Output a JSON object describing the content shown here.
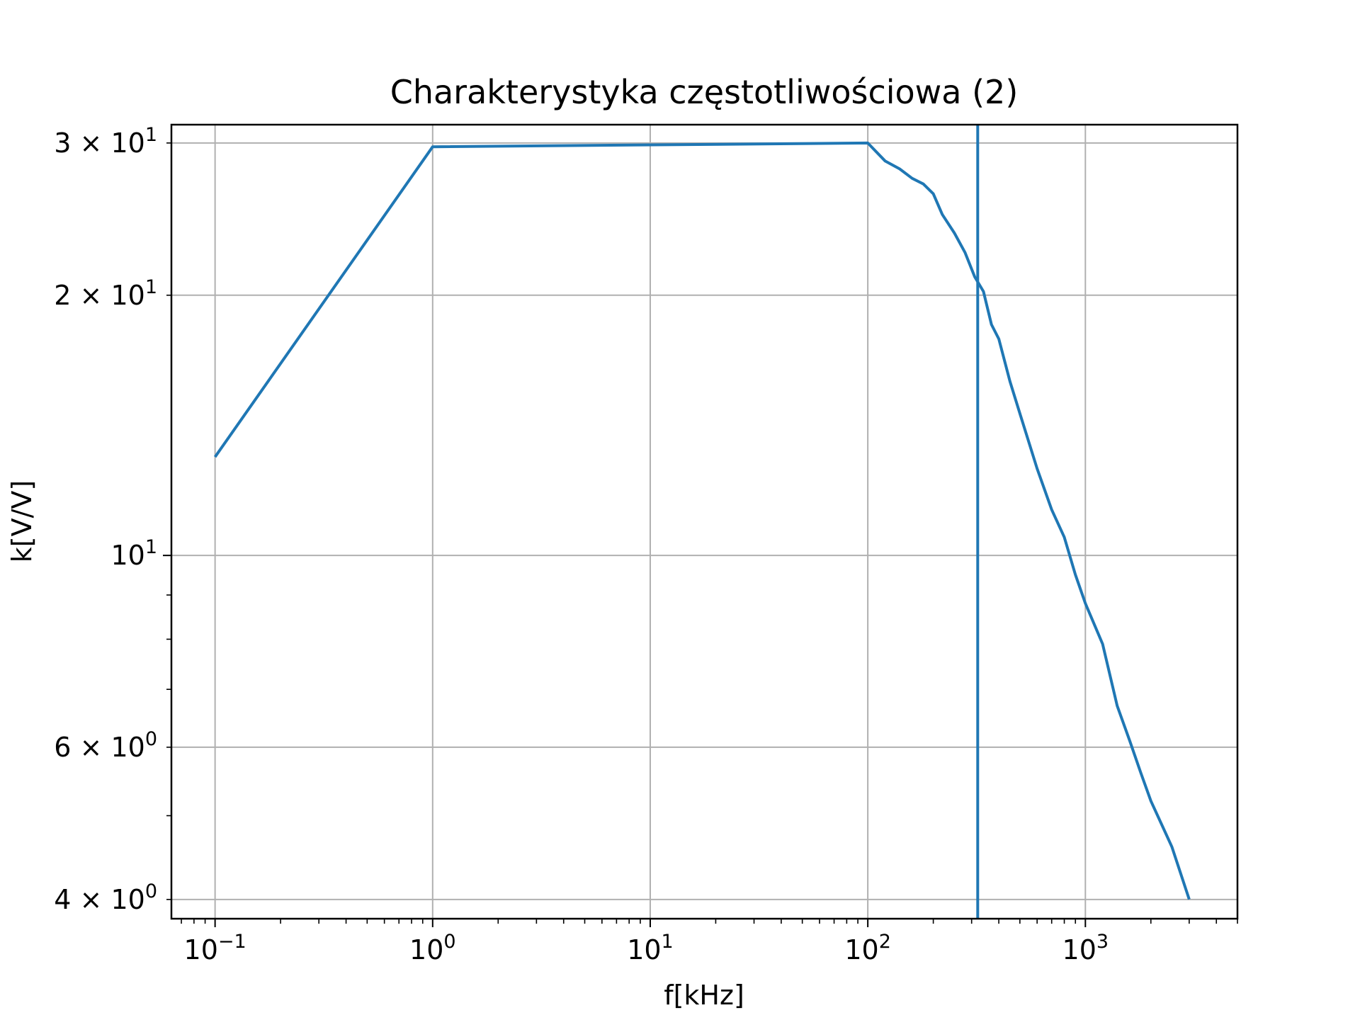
{
  "chart_data": {
    "type": "line",
    "title": "Charakterystyka częstotliwościowa (2)",
    "xlabel": "f[kHz]",
    "ylabel": "k[V/V]",
    "x_scale": "log",
    "y_scale": "log",
    "xlim": [
      0.063,
      5000
    ],
    "ylim": [
      3.8,
      31.5
    ],
    "grid": true,
    "line_color": "#1f77b4",
    "x_ticks": [
      {
        "value": 0.1,
        "base": "10",
        "exp": "−1"
      },
      {
        "value": 1,
        "base": "10",
        "exp": "0"
      },
      {
        "value": 10,
        "base": "10",
        "exp": "1"
      },
      {
        "value": 100,
        "base": "10",
        "exp": "2"
      },
      {
        "value": 1000,
        "base": "10",
        "exp": "3"
      }
    ],
    "y_ticks": [
      {
        "value": 4,
        "mant": "4 × 10",
        "exp": "0"
      },
      {
        "value": 6,
        "mant": "6 × 10",
        "exp": "0"
      },
      {
        "value": 10,
        "mant": "10",
        "exp": "1"
      },
      {
        "value": 20,
        "mant": "2 × 10",
        "exp": "1"
      },
      {
        "value": 30,
        "mant": "3 × 10",
        "exp": "1"
      }
    ],
    "series": [
      {
        "x": [
          0.1,
          1,
          100,
          120,
          140,
          160,
          180,
          200,
          220,
          250,
          280,
          310,
          340,
          370,
          400,
          450,
          500,
          600,
          700,
          800,
          900,
          1000,
          1200,
          1400,
          1600,
          1800,
          2000,
          2500,
          3000
        ],
        "y": [
          13.0,
          29.7,
          30.0,
          28.6,
          28.0,
          27.3,
          26.9,
          26.2,
          24.8,
          23.6,
          22.4,
          21.0,
          20.2,
          18.5,
          17.8,
          15.9,
          14.6,
          12.6,
          11.3,
          10.5,
          9.5,
          8.8,
          7.9,
          6.7,
          6.1,
          5.6,
          5.2,
          4.6,
          4.0
        ]
      }
    ],
    "vertical_line": {
      "x": 320
    }
  }
}
